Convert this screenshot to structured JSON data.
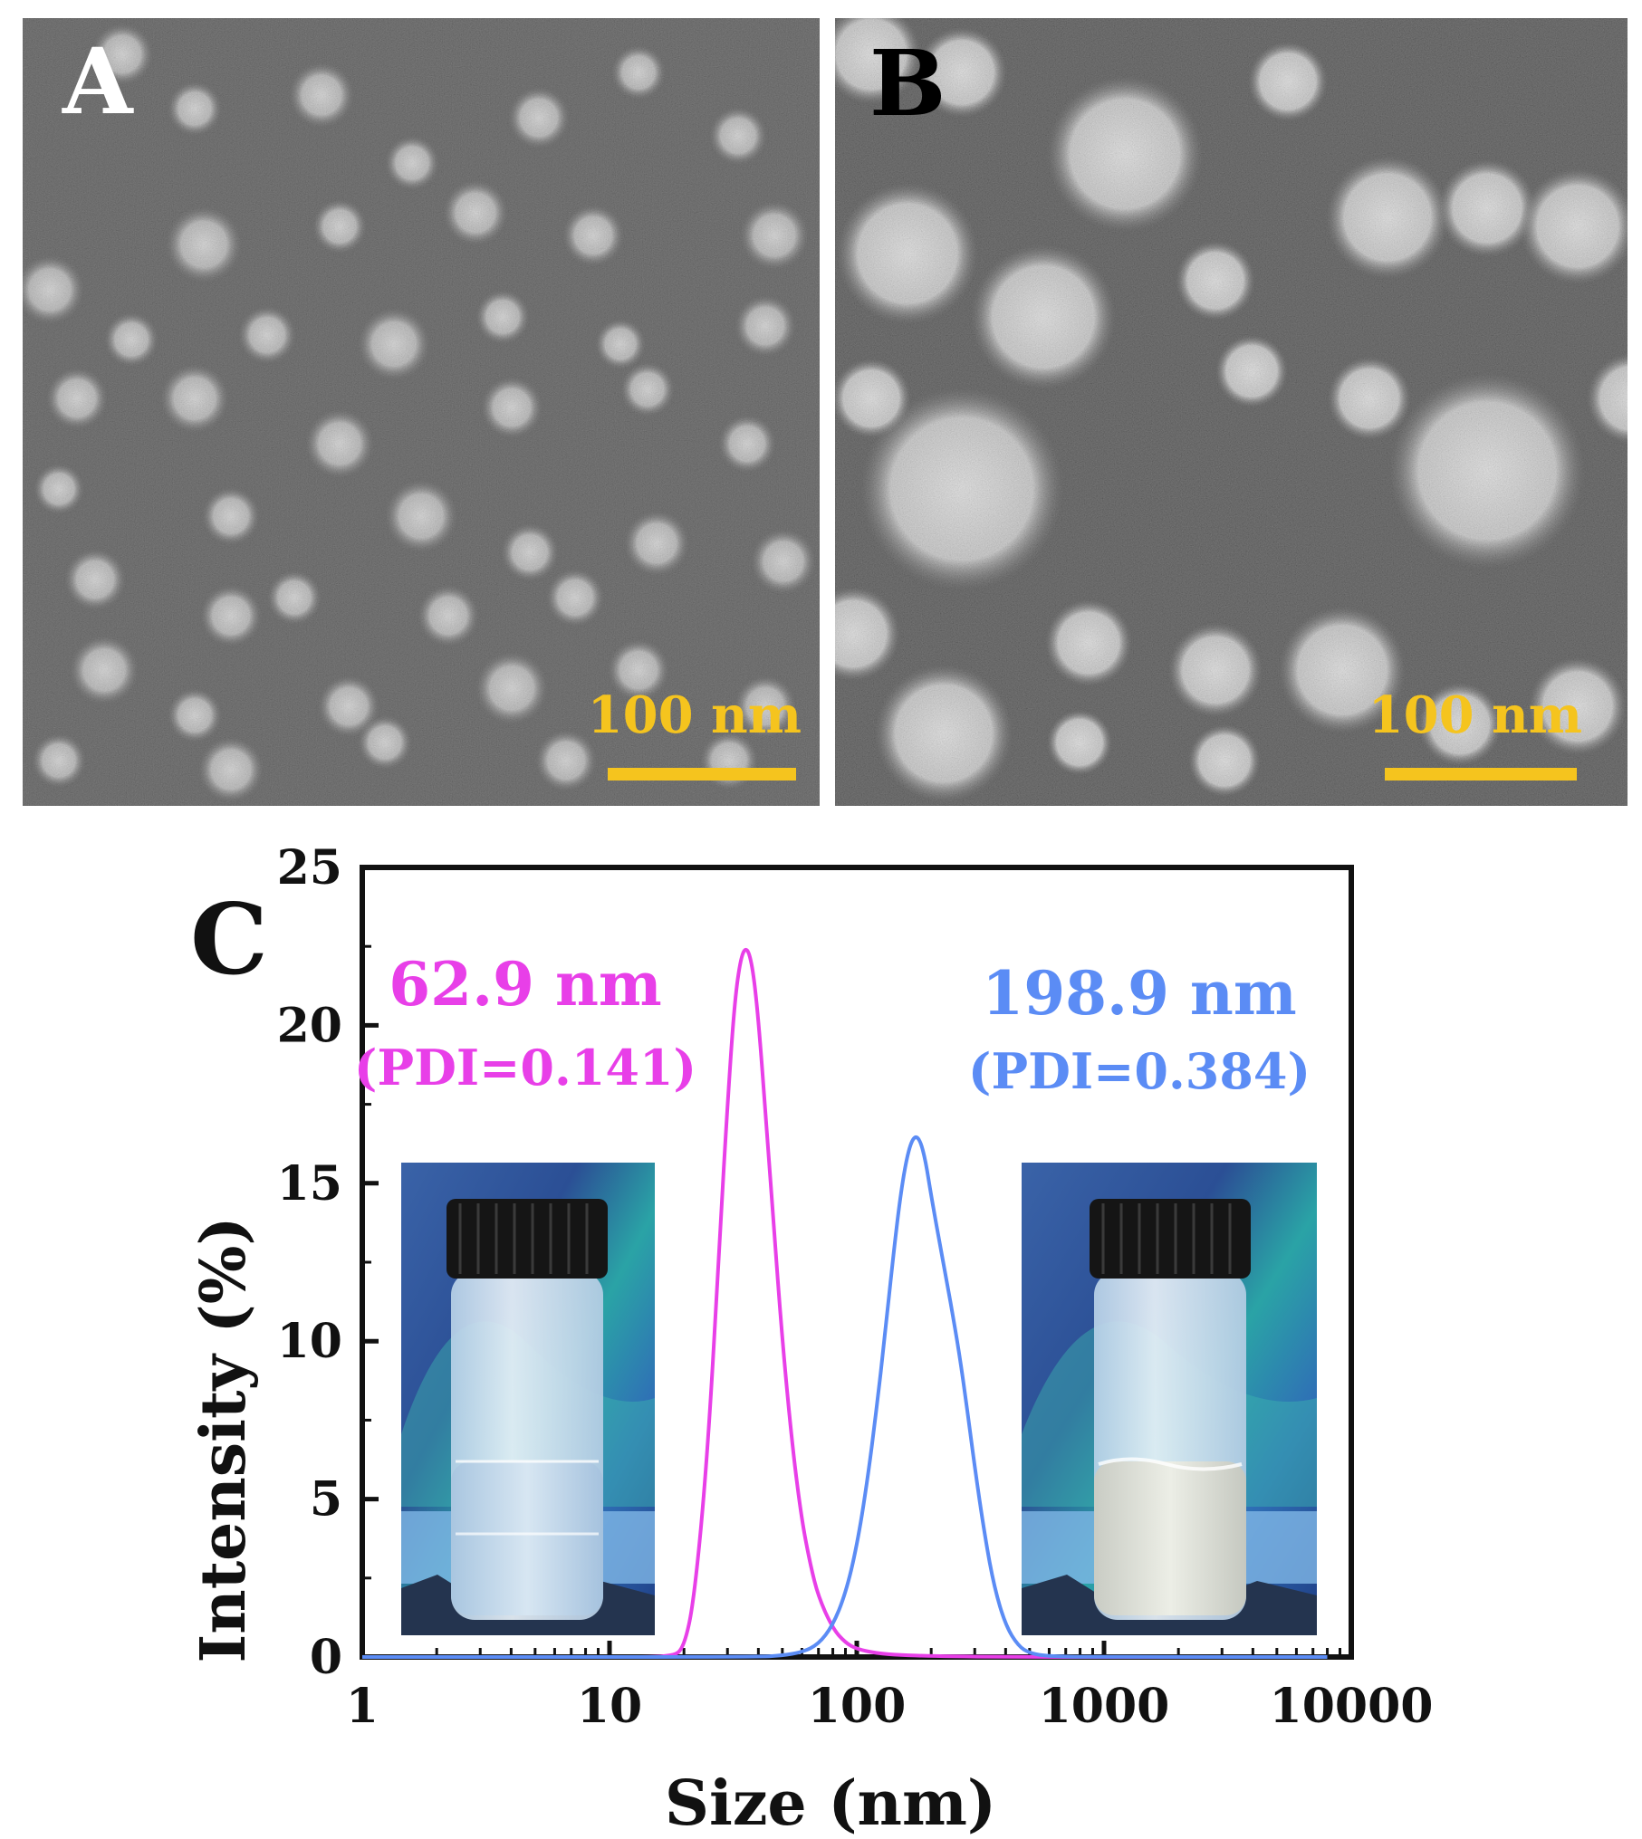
{
  "panels": {
    "a": {
      "letter": "A",
      "scale_label": "100 nm"
    },
    "b": {
      "letter": "B",
      "scale_label": "100 nm"
    }
  },
  "chart_data": {
    "type": "line",
    "panel_letter": "C",
    "xlabel": "Size (nm)",
    "ylabel": "Intensity (%)",
    "xscale": "log",
    "xlim": [
      1,
      10000
    ],
    "ylim": [
      0,
      25
    ],
    "xticks": [
      "1",
      "10",
      "100",
      "1000",
      "10000"
    ],
    "yticks": [
      "0",
      "5",
      "10",
      "15",
      "20",
      "25"
    ],
    "series": [
      {
        "color": "#e83fe8",
        "x": [
          1,
          10,
          18,
          20,
          22,
          25,
          28,
          30,
          32,
          34,
          36,
          38,
          40,
          43,
          46,
          50,
          55,
          60,
          65,
          70,
          80,
          90,
          100,
          120,
          150,
          200,
          300,
          500,
          1000,
          8000
        ],
        "y": [
          0,
          0,
          0,
          0.3,
          1.8,
          6.5,
          13.5,
          17.5,
          20.7,
          22.2,
          22.5,
          21.8,
          20.2,
          17.0,
          13.8,
          10.0,
          6.6,
          4.3,
          2.9,
          1.9,
          0.9,
          0.45,
          0.25,
          0.12,
          0.06,
          0.03,
          0.01,
          0,
          0,
          0
        ]
      },
      {
        "color": "#5b8cf5",
        "x": [
          1,
          40,
          50,
          60,
          70,
          80,
          90,
          100,
          110,
          120,
          130,
          140,
          150,
          160,
          170,
          180,
          190,
          200,
          220,
          240,
          260,
          280,
          300,
          330,
          360,
          400,
          450,
          500,
          600,
          1000,
          8000
        ],
        "y": [
          0,
          0,
          0.05,
          0.15,
          0.4,
          1.0,
          2.0,
          3.5,
          5.5,
          7.8,
          10.2,
          12.6,
          14.6,
          15.9,
          16.5,
          16.4,
          15.7,
          14.6,
          12.8,
          11.2,
          9.6,
          7.8,
          6.0,
          3.8,
          2.2,
          1.0,
          0.35,
          0.12,
          0.02,
          0,
          0
        ]
      }
    ],
    "annotations": [
      {
        "text": "62.9 nm",
        "color": "#e83fe8"
      },
      {
        "text": "(PDI=0.141)",
        "color": "#e83fe8"
      },
      {
        "text": "198.9 nm",
        "color": "#5b8cf5"
      },
      {
        "text": "(PDI=0.384)",
        "color": "#5b8cf5"
      }
    ]
  }
}
